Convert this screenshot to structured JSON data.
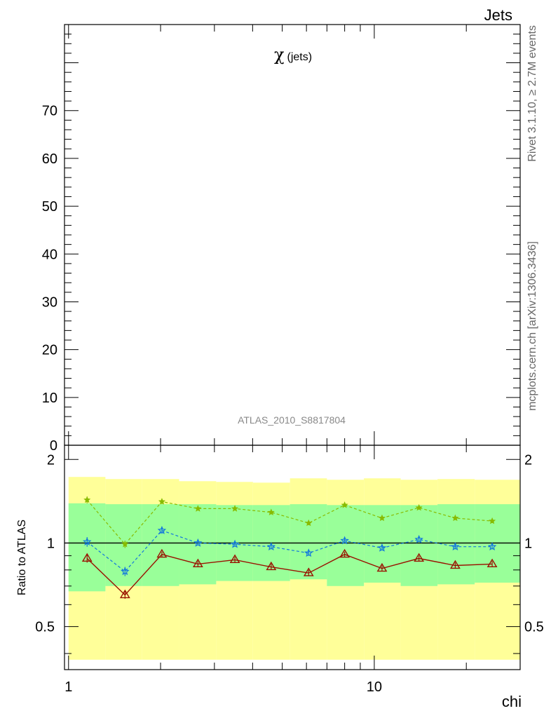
{
  "header": {
    "category": "Jets"
  },
  "side_labels": {
    "rivet": "Rivet 3.1.10, ≥ 2.7M events",
    "mcplots": "mcplots.cern.ch [arXiv:1306.3436]"
  },
  "chart_data": [
    {
      "type": "line",
      "title": "χ (jets)",
      "title_symbol": "χ",
      "title_suffix": "(jets)",
      "watermark": "ATLAS_2010_S8817804",
      "xscale": "log",
      "xlim": [
        0.97,
        30
      ],
      "ylim": [
        0,
        88
      ],
      "y_ticks": [
        0,
        10,
        20,
        30,
        40,
        50,
        60,
        70
      ],
      "y_tick_labels": [
        "0",
        "10",
        "20",
        "30",
        "40",
        "50",
        "60",
        "70"
      ],
      "series": []
    },
    {
      "type": "line",
      "ylabel": "Ratio to ATLAS",
      "xlabel": "chi",
      "xscale": "log",
      "xlim": [
        0.97,
        30
      ],
      "ylim": [
        0.35,
        2.25
      ],
      "reference_line": 1.0,
      "x_tick_labels": [
        {
          "value": 1,
          "label": "1"
        },
        {
          "value": 10,
          "label": "10"
        }
      ],
      "y_tick_labels": [
        {
          "value": 0.5,
          "label": "0.5"
        },
        {
          "value": 1,
          "label": "1"
        },
        {
          "value": 2,
          "label": "2"
        }
      ],
      "bin_edges": [
        1.0,
        1.32,
        1.74,
        2.3,
        3.04,
        4.01,
        5.3,
        7.0,
        9.25,
        12.2,
        16.1,
        21.3,
        30.0
      ],
      "bands": [
        {
          "color": "#ffff99",
          "lower": [
            0.38,
            0.38,
            0.38,
            0.38,
            0.38,
            0.38,
            0.38,
            0.38,
            0.38,
            0.38,
            0.38,
            0.38
          ],
          "upper": [
            1.73,
            1.7,
            1.7,
            1.67,
            1.66,
            1.65,
            1.71,
            1.69,
            1.71,
            1.69,
            1.7,
            1.69
          ]
        },
        {
          "color": "#99ff99",
          "lower": [
            0.67,
            0.7,
            0.7,
            0.71,
            0.73,
            0.73,
            0.74,
            0.7,
            0.72,
            0.7,
            0.71,
            0.72
          ],
          "upper": [
            1.39,
            1.38,
            1.38,
            1.38,
            1.37,
            1.37,
            1.38,
            1.37,
            1.37,
            1.37,
            1.38,
            1.38
          ]
        }
      ],
      "x": [
        1.15,
        1.53,
        2.02,
        2.65,
        3.5,
        4.6,
        6.1,
        8.0,
        10.6,
        14.0,
        18.4,
        24.3
      ],
      "series": [
        {
          "color": "#88bb00",
          "style": "dashed",
          "marker": "star",
          "values": [
            1.43,
            0.99,
            1.41,
            1.33,
            1.33,
            1.29,
            1.18,
            1.37,
            1.23,
            1.34,
            1.23,
            1.2
          ],
          "errors": [
            0.04,
            0.03,
            0.03,
            0.02,
            0.02,
            0.02,
            0.02,
            0.02,
            0.02,
            0.02,
            0.02,
            0.02
          ]
        },
        {
          "color": "#1177dd",
          "style": "dashed",
          "marker": "star-open",
          "values": [
            1.01,
            0.79,
            1.11,
            1.0,
            0.99,
            0.97,
            0.92,
            1.02,
            0.96,
            1.03,
            0.97,
            0.97
          ],
          "errors": [
            0.04,
            0.03,
            0.03,
            0.02,
            0.02,
            0.02,
            0.02,
            0.02,
            0.02,
            0.02,
            0.02,
            0.02
          ]
        },
        {
          "color": "#991100",
          "style": "solid",
          "marker": "triangle-open",
          "values": [
            0.88,
            0.65,
            0.91,
            0.84,
            0.87,
            0.82,
            0.78,
            0.91,
            0.81,
            0.88,
            0.83,
            0.84
          ],
          "errors": [
            0.03,
            0.02,
            0.02,
            0.02,
            0.02,
            0.02,
            0.02,
            0.02,
            0.02,
            0.02,
            0.02,
            0.02
          ]
        }
      ]
    }
  ]
}
